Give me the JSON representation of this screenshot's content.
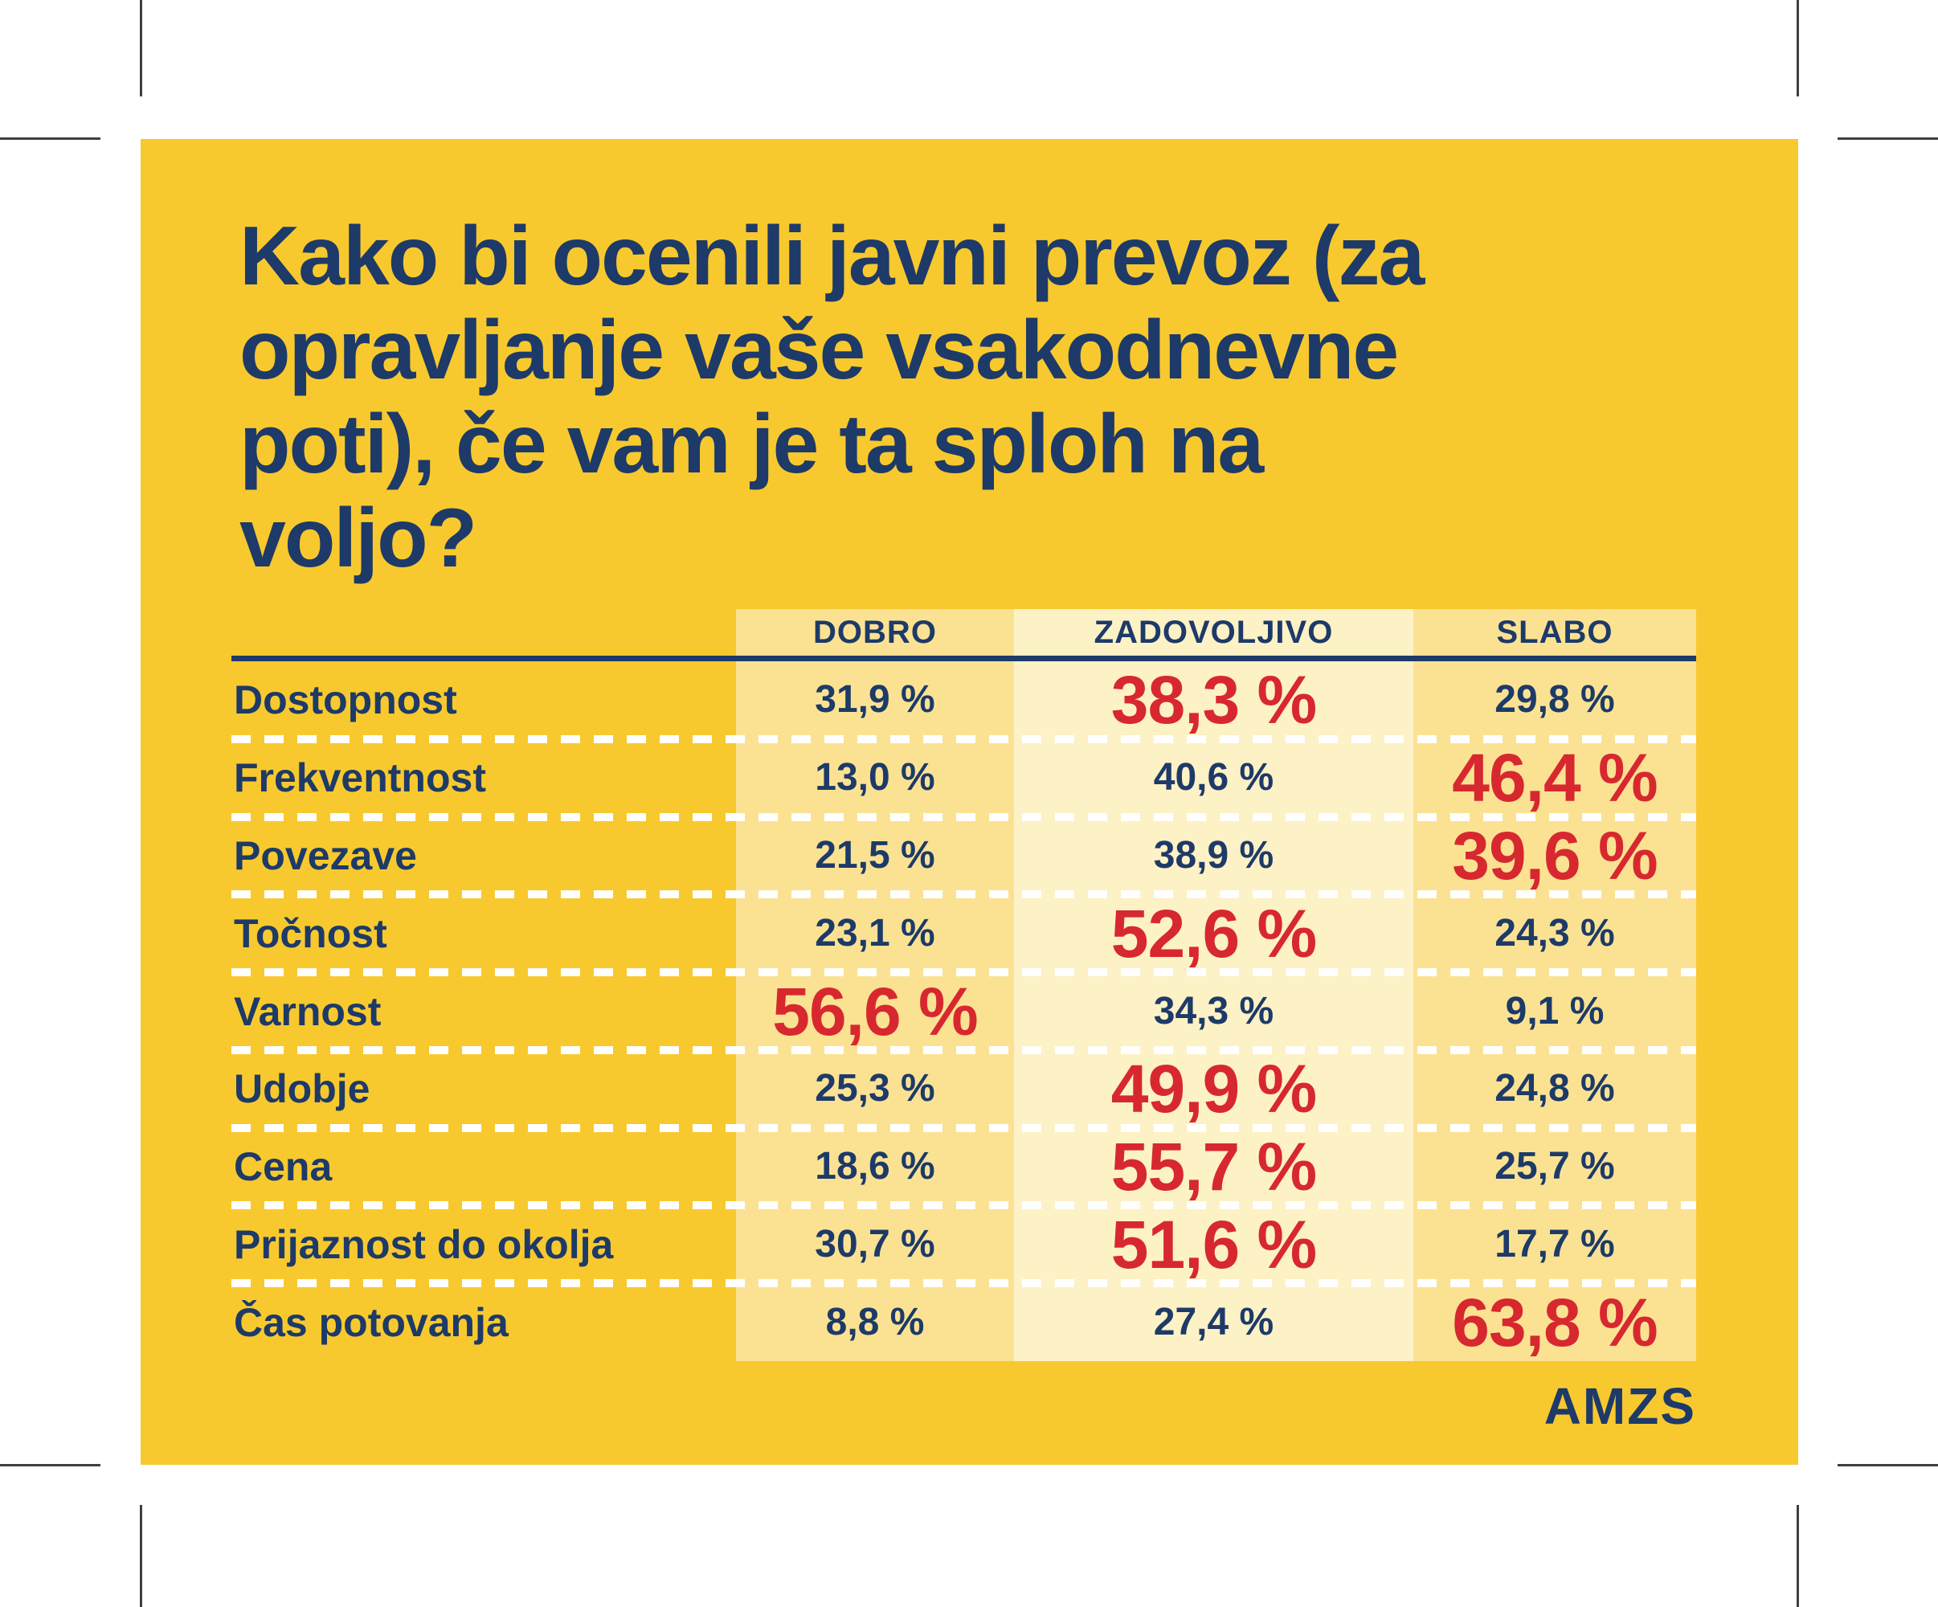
{
  "title": "Kako bi ocenili javni prevoz (za\nopravljanje vaše vsakodnevne\npoti), če vam je ta sploh na\nvoljo?",
  "logo": "AMZS",
  "colors": {
    "card_background": "#f8c92e",
    "side_column_background": "#fbe293",
    "middle_column_background": "#fdf1c6",
    "text_navy": "#1d3a68",
    "highlight_red": "#d7282f",
    "dash_white": "#ffffff"
  },
  "table": {
    "columns": [
      "DOBRO",
      "ZADOVOLJIVO",
      "SLABO"
    ],
    "rows": [
      {
        "label": "Dostopnost",
        "values": [
          "31,9 %",
          "38,3 %",
          "29,8 %"
        ],
        "highlight": 1
      },
      {
        "label": "Frekventnost",
        "values": [
          "13,0 %",
          "40,6 %",
          "46,4 %"
        ],
        "highlight": 2
      },
      {
        "label": "Povezave",
        "values": [
          "21,5 %",
          "38,9 %",
          "39,6 %"
        ],
        "highlight": 2
      },
      {
        "label": "Točnost",
        "values": [
          "23,1 %",
          "52,6 %",
          "24,3 %"
        ],
        "highlight": 1
      },
      {
        "label": "Varnost",
        "values": [
          "56,6 %",
          "34,3 %",
          "9,1 %"
        ],
        "highlight": 0
      },
      {
        "label": "Udobje",
        "values": [
          "25,3 %",
          "49,9 %",
          "24,8 %"
        ],
        "highlight": 1
      },
      {
        "label": "Cena",
        "values": [
          "18,6 %",
          "55,7 %",
          "25,7 %"
        ],
        "highlight": 1
      },
      {
        "label": "Prijaznost do okolja",
        "values": [
          "30,7 %",
          "51,6 %",
          "17,7 %"
        ],
        "highlight": 1
      },
      {
        "label": "Čas potovanja",
        "values": [
          "8,8 %",
          "27,4 %",
          "63,8 %"
        ],
        "highlight": 2
      }
    ]
  },
  "chart_data": {
    "type": "table",
    "title": "Kako bi ocenili javni prevoz (za opravljanje vaše vsakodnevne poti), če vam je ta sploh na voljo?",
    "categories": [
      "Dostopnost",
      "Frekventnost",
      "Povezave",
      "Točnost",
      "Varnost",
      "Udobje",
      "Cena",
      "Prijaznost do okolja",
      "Čas potovanja"
    ],
    "series": [
      {
        "name": "DOBRO",
        "values": [
          31.9,
          13.0,
          21.5,
          23.1,
          56.6,
          25.3,
          18.6,
          30.7,
          8.8
        ]
      },
      {
        "name": "ZADOVOLJIVO",
        "values": [
          38.3,
          40.6,
          38.9,
          52.6,
          34.3,
          49.9,
          55.7,
          51.6,
          27.4
        ]
      },
      {
        "name": "SLABO",
        "values": [
          29.8,
          46.4,
          39.6,
          24.3,
          9.1,
          24.8,
          25.7,
          17.7,
          63.8
        ]
      }
    ],
    "highlighted_max_per_row": [
      "ZADOVOLJIVO",
      "SLABO",
      "SLABO",
      "ZADOVOLJIVO",
      "DOBRO",
      "ZADOVOLJIVO",
      "ZADOVOLJIVO",
      "ZADOVOLJIVO",
      "SLABO"
    ],
    "unit": "%",
    "source_logo": "AMZS"
  }
}
